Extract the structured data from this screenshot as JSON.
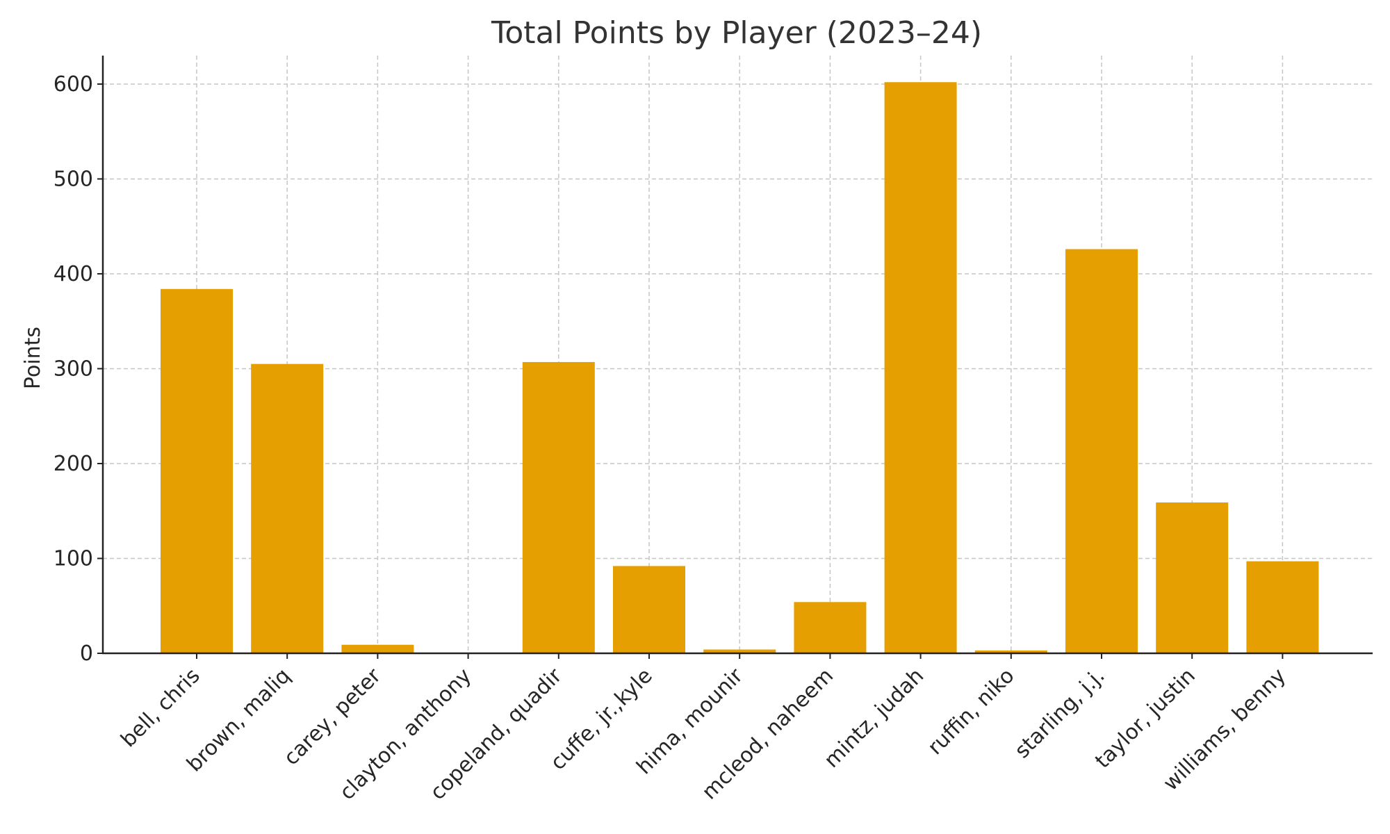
{
  "chart_data": {
    "type": "bar",
    "title": "Total Points by Player (2023–24)",
    "xlabel": "",
    "ylabel": "Points",
    "ylim": [
      0,
      630
    ],
    "yticks": [
      0,
      100,
      200,
      300,
      400,
      500,
      600
    ],
    "grid": true,
    "color": "#E69F00",
    "categories": [
      "bell, chris",
      "brown, maliq",
      "carey, peter",
      "clayton, anthony",
      "copeland, quadir",
      "cuffe, jr.,kyle",
      "hima, mounir",
      "mcleod, naheem",
      "mintz, judah",
      "ruffin, niko",
      "starling, j.j.",
      "taylor, justin",
      "williams, benny"
    ],
    "values": [
      384,
      305,
      9,
      0,
      307,
      92,
      4,
      54,
      602,
      3,
      426,
      159,
      97
    ]
  }
}
